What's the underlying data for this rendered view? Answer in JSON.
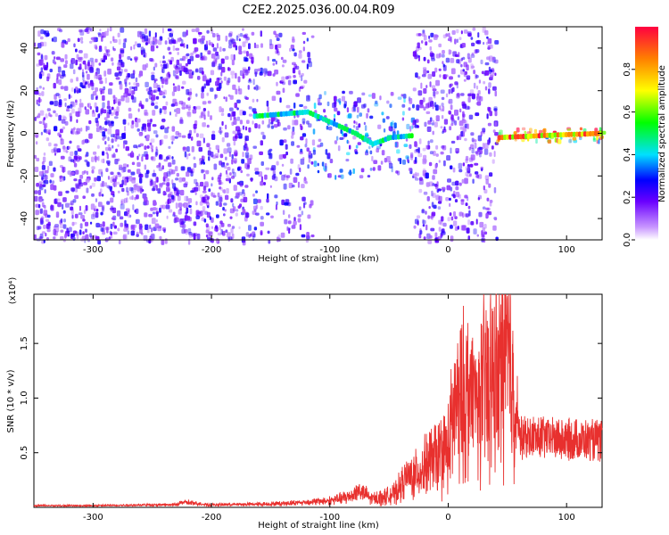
{
  "title": "C2E2.2025.036.00.04.R09",
  "chart_data": [
    {
      "type": "heatmap",
      "xlabel": "Height of straight line (km)",
      "ylabel": "Frequency (Hz)",
      "xlim": [
        -350,
        130
      ],
      "ylim": [
        -50,
        50
      ],
      "x_ticks": [
        -300,
        -200,
        -100,
        0,
        100
      ],
      "y_ticks": [
        -40,
        -20,
        0,
        20,
        40
      ],
      "colorbar": {
        "label": "Normalized spectral amplitude",
        "range": [
          0,
          1
        ],
        "ticks": [
          0.0,
          0.2,
          0.4,
          0.6,
          0.8
        ]
      },
      "regions": [
        {
          "x_start": -350,
          "x_end": -170,
          "freq_range": [
            -50,
            50
          ],
          "amplitude": 0.2,
          "density": 0.8
        },
        {
          "x_start": -170,
          "x_end": -115,
          "freq_range": [
            -50,
            50
          ],
          "amplitude": 0.22,
          "density": 0.45
        },
        {
          "x_start": -115,
          "x_end": -30,
          "freq_range": [
            -20,
            20
          ],
          "amplitude": 0.3,
          "density": 0.5
        },
        {
          "x_start": -30,
          "x_end": 40,
          "freq_range": [
            -50,
            50
          ],
          "amplitude": 0.2,
          "density": 0.65
        },
        {
          "x_start": 40,
          "x_end": 130,
          "freq_range": [
            -3,
            3
          ],
          "amplitude": 0.85,
          "density": 0.9
        }
      ],
      "ridge": [
        {
          "x": -165,
          "f": 8
        },
        {
          "x": -120,
          "f": 10
        },
        {
          "x": -100,
          "f": 5
        },
        {
          "x": -80,
          "f": 0
        },
        {
          "x": -65,
          "f": -5
        },
        {
          "x": -50,
          "f": -2
        },
        {
          "x": -30,
          "f": -1
        },
        {
          "x": 42,
          "f": -2
        },
        {
          "x": 80,
          "f": -1
        },
        {
          "x": 130,
          "f": 0
        }
      ]
    },
    {
      "type": "line",
      "xlabel": "Height of straight line (km)",
      "ylabel": "SNR (10 * v/v)",
      "y_multiplier": "(x10⁴)",
      "xlim": [
        -350,
        130
      ],
      "ylim": [
        0,
        1.95
      ],
      "x_ticks": [
        -300,
        -200,
        -100,
        0,
        100
      ],
      "y_ticks": [
        0.5,
        1.0,
        1.5
      ],
      "y_tick_labels": [
        "0.5",
        "1.0",
        "1.5"
      ],
      "series": [
        {
          "color": "#e8302e",
          "x": [
            -350,
            -300,
            -250,
            -230,
            -225,
            -200,
            -150,
            -120,
            -100,
            -85,
            -75,
            -65,
            -55,
            -45,
            -35,
            -25,
            -15,
            -8,
            0,
            5,
            15,
            25,
            35,
            42,
            48,
            55,
            60,
            80,
            100,
            130
          ],
          "y": [
            0.02,
            0.02,
            0.03,
            0.03,
            0.06,
            0.03,
            0.04,
            0.06,
            0.08,
            0.12,
            0.2,
            0.1,
            0.12,
            0.16,
            0.35,
            0.4,
            0.55,
            0.6,
            0.7,
            1.1,
            1.35,
            1.25,
            1.55,
            1.5,
            1.9,
            1.45,
            0.82,
            0.83,
            0.8,
            0.78
          ],
          "noise": [
            0.005,
            0.005,
            0.008,
            0.008,
            0.02,
            0.01,
            0.015,
            0.02,
            0.03,
            0.05,
            0.08,
            0.05,
            0.06,
            0.08,
            0.15,
            0.18,
            0.25,
            0.3,
            0.35,
            0.55,
            0.65,
            0.6,
            0.75,
            0.7,
            0.85,
            0.7,
            0.03,
            0.03,
            0.03,
            0.03
          ]
        }
      ]
    }
  ]
}
